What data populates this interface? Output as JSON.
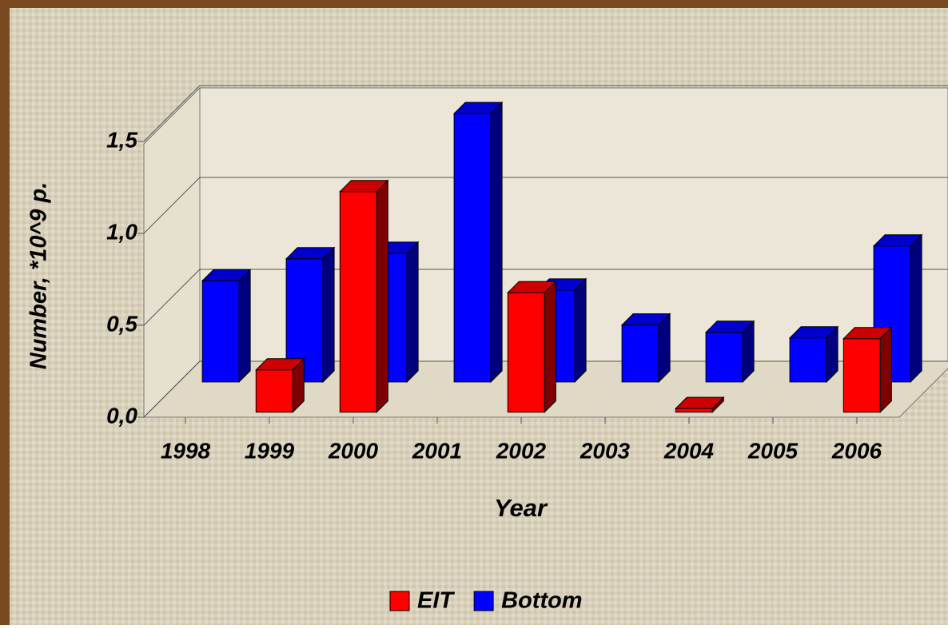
{
  "chart_data": {
    "type": "bar3d",
    "x_label": "Year",
    "y_label": "Number, *10^9 p.",
    "categories": [
      "1998",
      "1999",
      "2000",
      "2001",
      "2002",
      "2003",
      "2004",
      "2005",
      "2006"
    ],
    "series": [
      {
        "name": "EIT",
        "color": "#ff0000",
        "values": [
          null,
          0.23,
          1.2,
          null,
          0.65,
          null,
          0.02,
          null,
          0.4
        ]
      },
      {
        "name": "Bottom",
        "color": "#0000ff",
        "values": [
          0.55,
          0.67,
          0.7,
          1.46,
          0.5,
          0.31,
          0.27,
          0.24,
          0.74
        ]
      }
    ],
    "ylim": [
      0,
      1.5
    ],
    "yticks": [
      {
        "value": 0,
        "label": "0,0"
      },
      {
        "value": 0.5,
        "label": "0,5"
      },
      {
        "value": 1,
        "label": "1,0"
      },
      {
        "value": 1.5,
        "label": "1,5"
      }
    ],
    "grid": true,
    "legend": "bottom"
  }
}
